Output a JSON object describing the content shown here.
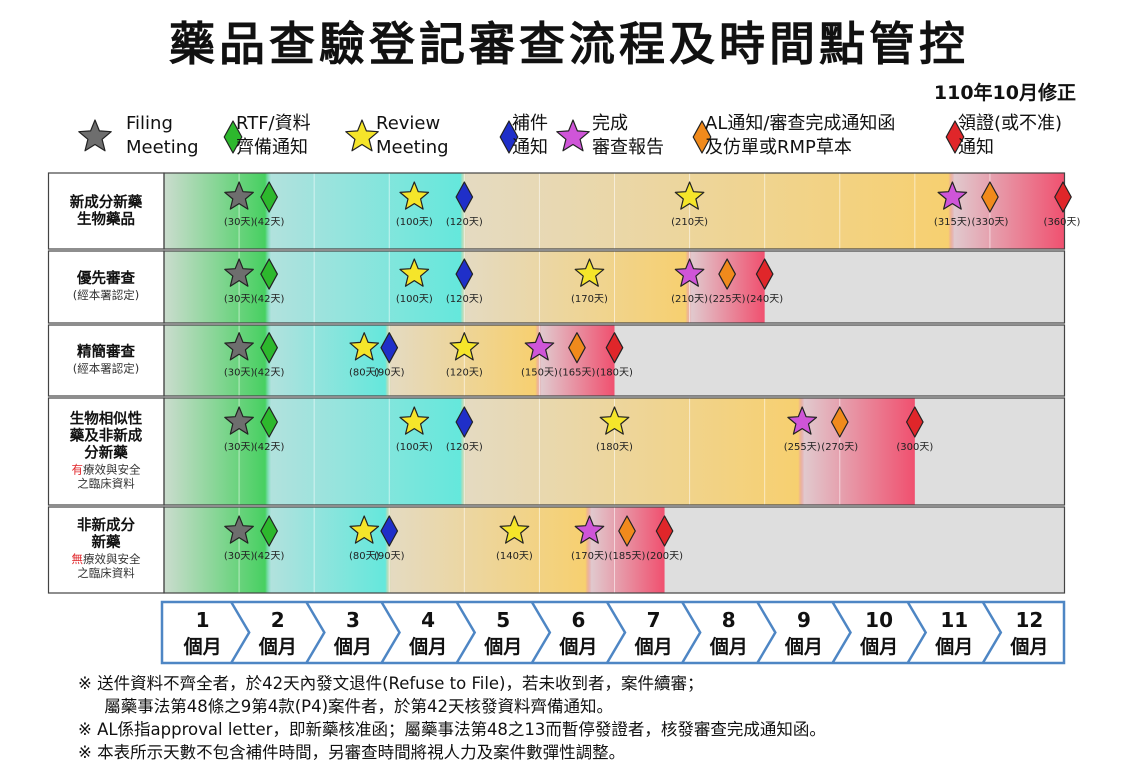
{
  "title": "藥品查驗登記審查流程及時間點管控",
  "revision": "110年10月修正",
  "legend": [
    {
      "icon": "star-icon",
      "color": "#6e6e6e",
      "line1": "Filing",
      "line2": "Meeting"
    },
    {
      "icon": "diamond-icon",
      "color": "#2db82d",
      "line1": "RTF/資料",
      "line2": "齊備通知"
    },
    {
      "icon": "star-icon",
      "color": "#f5e52a",
      "line1": "Review",
      "line2": "Meeting"
    },
    {
      "icon": "diamond-icon",
      "color": "#1f2fc9",
      "line1": "補件",
      "line2": "通知"
    },
    {
      "icon": "star-icon",
      "color": "#cf55d8",
      "line1": "完成",
      "line2": "審查報告"
    },
    {
      "icon": "diamond-icon",
      "color": "#f08a1c",
      "line1": "AL通知/審查完成通知函",
      "line2": "及仿單或RMP草本"
    },
    {
      "icon": "diamond-icon",
      "color": "#e0262a",
      "line1": "領證(或不准)",
      "line2": "通知"
    }
  ],
  "rows": [
    {
      "id": "new-ingredient",
      "title": [
        "新成分新藥",
        "生物藥品"
      ],
      "notes": [],
      "markers": [
        {
          "type": 0,
          "day": 30,
          "label": "(30天)"
        },
        {
          "type": 1,
          "day": 42,
          "label": "(42天)"
        },
        {
          "type": 2,
          "day": 100,
          "label": "(100天)"
        },
        {
          "type": 3,
          "day": 120,
          "label": "(120天)"
        },
        {
          "type": 2,
          "day": 210,
          "label": "(210天)"
        },
        {
          "type": 4,
          "day": 315,
          "label": "(315天)"
        },
        {
          "type": 5,
          "day": 330,
          "label": "(330天)"
        },
        {
          "type": 6,
          "day": 360,
          "label": "(360天)"
        }
      ]
    },
    {
      "id": "priority",
      "title": [
        "優先審查"
      ],
      "notes": [
        {
          "text": "(經本署認定)"
        }
      ],
      "markers": [
        {
          "type": 0,
          "day": 30,
          "label": "(30天)"
        },
        {
          "type": 1,
          "day": 42,
          "label": "(42天)"
        },
        {
          "type": 2,
          "day": 100,
          "label": "(100天)"
        },
        {
          "type": 3,
          "day": 120,
          "label": "(120天)"
        },
        {
          "type": 2,
          "day": 170,
          "label": "(170天)"
        },
        {
          "type": 4,
          "day": 210,
          "label": "(210天)"
        },
        {
          "type": 5,
          "day": 225,
          "label": "(225天)"
        },
        {
          "type": 6,
          "day": 240,
          "label": "(240天)"
        }
      ]
    },
    {
      "id": "streamlined",
      "title": [
        "精簡審查"
      ],
      "notes": [
        {
          "text": "(經本署認定)"
        }
      ],
      "markers": [
        {
          "type": 0,
          "day": 30,
          "label": "(30天)"
        },
        {
          "type": 1,
          "day": 42,
          "label": "(42天)"
        },
        {
          "type": 2,
          "day": 80,
          "label": "(80天)"
        },
        {
          "type": 3,
          "day": 90,
          "label": "(90天)"
        },
        {
          "type": 2,
          "day": 120,
          "label": "(120天)"
        },
        {
          "type": 4,
          "day": 150,
          "label": "(150天)"
        },
        {
          "type": 5,
          "day": 165,
          "label": "(165天)"
        },
        {
          "type": 6,
          "day": 180,
          "label": "(180天)"
        }
      ]
    },
    {
      "id": "biosimilar",
      "title": [
        "生物相似性",
        "藥及非新成",
        "分新藥"
      ],
      "notes": [
        {
          "prefix": "有",
          "text": "療效與安全"
        },
        {
          "text": "之臨床資料"
        }
      ],
      "markers": [
        {
          "type": 0,
          "day": 30,
          "label": "(30天)"
        },
        {
          "type": 1,
          "day": 42,
          "label": "(42天)"
        },
        {
          "type": 2,
          "day": 100,
          "label": "(100天)"
        },
        {
          "type": 3,
          "day": 120,
          "label": "(120天)"
        },
        {
          "type": 2,
          "day": 180,
          "label": "(180天)"
        },
        {
          "type": 4,
          "day": 255,
          "label": "(255天)"
        },
        {
          "type": 5,
          "day": 270,
          "label": "(270天)"
        },
        {
          "type": 6,
          "day": 300,
          "label": "(300天)"
        }
      ]
    },
    {
      "id": "non-new",
      "title": [
        "非新成分",
        "新藥"
      ],
      "notes": [
        {
          "prefix": "無",
          "text": "療效與安全"
        },
        {
          "text": "之臨床資料"
        }
      ],
      "markers": [
        {
          "type": 0,
          "day": 30,
          "label": "(30天)"
        },
        {
          "type": 1,
          "day": 42,
          "label": "(42天)"
        },
        {
          "type": 2,
          "day": 80,
          "label": "(80天)"
        },
        {
          "type": 3,
          "day": 90,
          "label": "(90天)"
        },
        {
          "type": 2,
          "day": 140,
          "label": "(140天)"
        },
        {
          "type": 4,
          "day": 170,
          "label": "(170天)"
        },
        {
          "type": 5,
          "day": 185,
          "label": "(185天)"
        },
        {
          "type": 6,
          "day": 200,
          "label": "(200天)"
        }
      ]
    }
  ],
  "months": [
    {
      "num": "1",
      "unit": "個月"
    },
    {
      "num": "2",
      "unit": "個月"
    },
    {
      "num": "3",
      "unit": "個月"
    },
    {
      "num": "4",
      "unit": "個月"
    },
    {
      "num": "5",
      "unit": "個月"
    },
    {
      "num": "6",
      "unit": "個月"
    },
    {
      "num": "7",
      "unit": "個月"
    },
    {
      "num": "8",
      "unit": "個月"
    },
    {
      "num": "9",
      "unit": "個月"
    },
    {
      "num": "10",
      "unit": "個月"
    },
    {
      "num": "11",
      "unit": "個月"
    },
    {
      "num": "12",
      "unit": "個月"
    }
  ],
  "footnotes": [
    "※ 送件資料不齊全者，於42天內發文退件(Refuse to File)，若未收到者，案件續審；",
    "     屬藥事法第48條之9第4款(P4)案件者，於第42天核發資料齊備通知。",
    "※ AL係指approval letter，即新藥核准函；屬藥事法第48之13而暫停發證者，核發審查完成通知函。",
    "※ 本表所示天數不包含補件時間，另審查時間將視人力及案件數彈性調整。"
  ],
  "colors": {
    "phase_green": "#3fcf5a",
    "phase_cyan": "#5ee8dc",
    "phase_yellow": "#f8cf6a",
    "phase_pink": "#f0506f",
    "inactive": "#dedede",
    "month_border": "#4e86c4"
  }
}
